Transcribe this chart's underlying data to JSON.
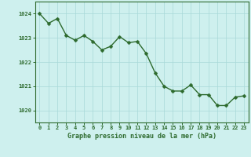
{
  "x": [
    0,
    1,
    2,
    3,
    4,
    5,
    6,
    7,
    8,
    9,
    10,
    11,
    12,
    13,
    14,
    15,
    16,
    17,
    18,
    19,
    20,
    21,
    22,
    23
  ],
  "y": [
    1024.0,
    1023.6,
    1023.8,
    1023.1,
    1022.9,
    1023.1,
    1022.85,
    1022.5,
    1022.65,
    1023.05,
    1022.8,
    1022.85,
    1022.35,
    1021.55,
    1021.0,
    1020.8,
    1020.8,
    1021.05,
    1020.65,
    1020.65,
    1020.2,
    1020.2,
    1020.55,
    1020.6
  ],
  "line_color": "#2d6a2d",
  "marker_color": "#2d6a2d",
  "bg_color": "#cef0ee",
  "grid_color": "#a8d8d8",
  "xlabel": "Graphe pression niveau de la mer (hPa)",
  "xlabel_color": "#2d6a2d",
  "tick_color": "#2d6a2d",
  "spine_color": "#2d6a2d",
  "ylim": [
    1019.5,
    1024.5
  ],
  "xlim": [
    -0.5,
    23.5
  ],
  "yticks": [
    1020,
    1021,
    1022,
    1023,
    1024
  ],
  "xticks": [
    0,
    1,
    2,
    3,
    4,
    5,
    6,
    7,
    8,
    9,
    10,
    11,
    12,
    13,
    14,
    15,
    16,
    17,
    18,
    19,
    20,
    21,
    22,
    23
  ],
  "marker_size": 2.5,
  "line_width": 1.0,
  "tick_fontsize": 5.0,
  "xlabel_fontsize": 6.0
}
